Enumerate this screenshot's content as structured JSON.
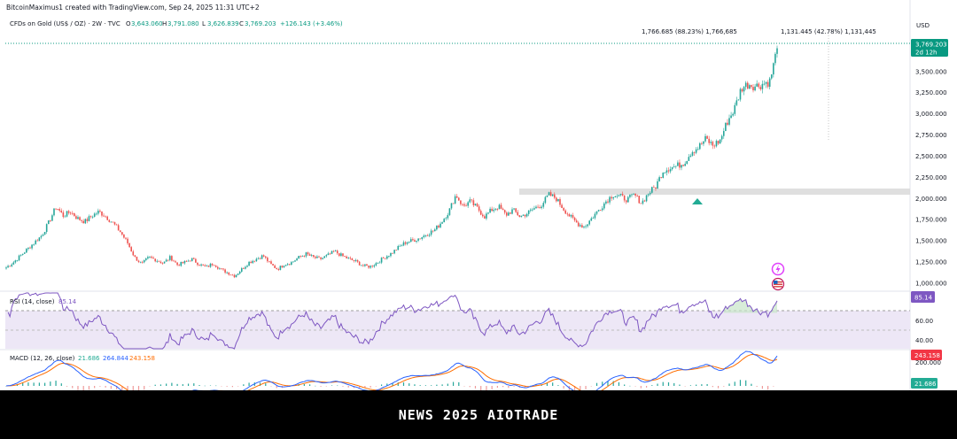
{
  "header": {
    "attribution": "BitcoinMaximus1 created with TradingView.com, Sep 24, 2025 11:31 UTC+2",
    "symbol_title": "CFDs on Gold (US$ / OZ) · 2W · TVC",
    "ohlc": [
      {
        "key": "O",
        "value": "3,643.060"
      },
      {
        "key": "H",
        "value": "3,791.080"
      },
      {
        "key": "L",
        "value": "3,626.839"
      },
      {
        "key": "C",
        "value": "3,769.203"
      }
    ],
    "change": "+126.143 (+3.46%)"
  },
  "annotations": {
    "measure_1": "1,766.685 (88.23%) 1,766,685",
    "measure_2": "1,131.445 (42.78%) 1,131,445"
  },
  "price_axis": {
    "currency": "USD",
    "last_price": "3,769.203",
    "countdown": "2d 12h"
  },
  "rsi_panel": {
    "label": "RSI (14, close)",
    "value": "85.14",
    "ticks": [
      "60.00",
      "40.00"
    ]
  },
  "macd_panel": {
    "label": "MACD (12, 26, close)",
    "macd_value": "21.686",
    "signal_value": "264.844",
    "hist_value": "243.158",
    "tick": "200.000",
    "badge_top": "243.158",
    "badge_bottom": "21.686"
  },
  "banner": {
    "text": "NEWS 2025 AIOTRADE"
  },
  "colors": {
    "up": "#26a69a",
    "down": "#ef5350",
    "rsi_line": "#7e57c2",
    "rsi_band": "#ede7f6",
    "macd_line": "#2962ff",
    "signal_line": "#ff6d00",
    "resistance_zone": "#d9d9d9",
    "last_price_badge": "#089981",
    "rsi_badge": "#7e57c2",
    "macd_badge_red": "#f23645",
    "macd_badge_green": "#22ab94",
    "banner_bg": "#000000"
  },
  "icons": [
    "lightning-icon",
    "us-flag-icon",
    "up-triangle-marker"
  ],
  "chart_data": {
    "type": "candlestick",
    "title": "CFDs on Gold (US$ / OZ) · 2W · TVC",
    "price_ylim": [
      900,
      3900
    ],
    "price_ticks": [
      1000,
      1250,
      1500,
      1750,
      2000,
      2250,
      2500,
      2750,
      3000,
      3250,
      3500
    ],
    "price_tick_labels": [
      "1,000.000",
      "1,250.000",
      "1,500.000",
      "1,750.000",
      "2,000.000",
      "2,250.000",
      "2,500.000",
      "2,750.000",
      "3,000.000",
      "3,250.000",
      "3,500.000"
    ],
    "resistance_zone": [
      2010,
      2075
    ],
    "close_path": [
      1180,
      1240,
      1320,
      1400,
      1480,
      1560,
      1720,
      1900,
      1790,
      1840,
      1760,
      1720,
      1790,
      1840,
      1780,
      1700,
      1600,
      1470,
      1300,
      1220,
      1300,
      1270,
      1230,
      1300,
      1210,
      1240,
      1280,
      1220,
      1180,
      1230,
      1160,
      1120,
      1080,
      1160,
      1240,
      1280,
      1320,
      1220,
      1160,
      1220,
      1240,
      1300,
      1340,
      1300,
      1280,
      1320,
      1370,
      1320,
      1280,
      1250,
      1200,
      1190,
      1240,
      1300,
      1350,
      1420,
      1480,
      1500,
      1530,
      1580,
      1620,
      1720,
      1840,
      2040,
      1900,
      1960,
      1880,
      1780,
      1860,
      1900,
      1800,
      1860,
      1780,
      1820,
      1880,
      1920,
      2040,
      2000,
      1880,
      1780,
      1700,
      1660,
      1760,
      1860,
      1960,
      2040,
      2020,
      1980,
      2040,
      1940,
      2060,
      2140,
      2320,
      2360,
      2380,
      2420,
      2550,
      2600,
      2700,
      2620,
      2680,
      2900,
      3050,
      3300,
      3350,
      3320,
      3350,
      3380,
      3769
    ],
    "rsi_ylim": [
      25,
      95
    ],
    "rsi_ticks": [
      40,
      60
    ],
    "rsi_overbought": 70,
    "rsi_oversold": 50,
    "rsi_last": 85.14,
    "macd_last": 21.686,
    "signal_last": 264.844,
    "hist_last": 243.158
  }
}
